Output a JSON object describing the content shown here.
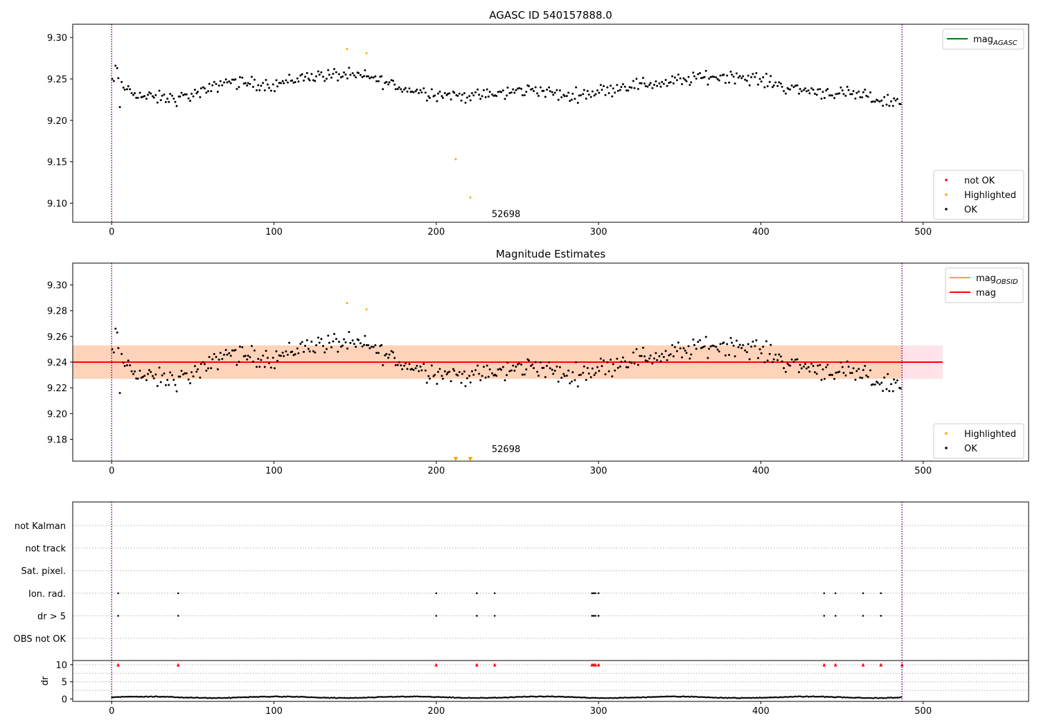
{
  "colors": {
    "ok": "#000000",
    "highlighted": "#ffa500",
    "not_ok": "#ff0000",
    "mag_line": "#ff0000",
    "mag_obsid_line": "#ffa500",
    "mag_agasc_line": "#008000",
    "vline": "#800080",
    "band_outer": "#ffc0cb",
    "band_inner": "#ffd0b0",
    "grid": "#b0b0b0"
  },
  "chart_data": [
    {
      "type": "scatter",
      "title": "AGASC ID 540157888.0",
      "xlim": [
        -24,
        565
      ],
      "ylim": [
        9.077,
        9.316
      ],
      "x_ticks": [
        0,
        100,
        200,
        300,
        400,
        500
      ],
      "y_ticks": [
        9.1,
        9.15,
        9.2,
        9.25,
        9.3
      ],
      "y_tick_labels": [
        "9.10",
        "9.15",
        "9.20",
        "9.25",
        "9.30"
      ],
      "vlines": [
        0,
        487
      ],
      "annotation": {
        "text": "52698",
        "x": 243,
        "y": 9.085
      },
      "legend_top": {
        "placement": "upper right",
        "entries": [
          {
            "label": "mag",
            "subscript": "AGASC",
            "color_key": "mag_agasc_line"
          }
        ]
      },
      "legend_bottom": {
        "placement": "lower right",
        "entries": [
          {
            "label": "not OK",
            "color_key": "not_ok"
          },
          {
            "label": "Highlighted",
            "color_key": "highlighted"
          },
          {
            "label": "OK",
            "color_key": "ok"
          }
        ]
      },
      "series": [
        {
          "name": "not OK",
          "color_key": "not_ok",
          "x": [],
          "y": []
        },
        {
          "name": "Highlighted",
          "color_key": "highlighted",
          "x": [
            145,
            157,
            212,
            221
          ],
          "y": [
            9.286,
            9.281,
            9.153,
            9.107
          ]
        },
        {
          "name": "OK",
          "color_key": "ok",
          "trend": {
            "x": [
              0,
              20,
              40,
              60,
              70,
              80,
              100,
              120,
              140,
              160,
              180,
              200,
              220,
              240,
              260,
              280,
              300,
              320,
              340,
              360,
              380,
              400,
              420,
              440,
              460,
              480,
              487
            ],
            "y": [
              9.247,
              9.228,
              9.226,
              9.236,
              9.248,
              9.245,
              9.243,
              9.253,
              9.255,
              9.252,
              9.238,
              9.232,
              9.229,
              9.232,
              9.238,
              9.229,
              9.235,
              9.243,
              9.245,
              9.251,
              9.254,
              9.249,
              9.238,
              9.234,
              9.23,
              9.222,
              9.224
            ]
          },
          "scatter_amplitude": 0.009,
          "n_points": 487
        }
      ]
    },
    {
      "type": "scatter",
      "title": "Magnitude Estimates",
      "xlim": [
        -24,
        565
      ],
      "ylim": [
        9.163,
        9.317
      ],
      "x_ticks": [
        0,
        100,
        200,
        300,
        400,
        500
      ],
      "y_ticks": [
        9.18,
        9.2,
        9.22,
        9.24,
        9.26,
        9.28,
        9.3
      ],
      "y_tick_labels": [
        "9.18",
        "9.20",
        "9.22",
        "9.24",
        "9.26",
        "9.28",
        "9.30"
      ],
      "vlines": [
        0,
        487
      ],
      "annotation": {
        "text": "52698",
        "x": 243,
        "y": 9.171
      },
      "mag_line": {
        "y": 9.24,
        "x_range": [
          -24,
          512
        ]
      },
      "band_outer": {
        "y_range": [
          9.227,
          9.253
        ],
        "x_range": [
          -24,
          512
        ]
      },
      "band_inner": {
        "y_range": [
          9.227,
          9.253
        ],
        "x_range": [
          -24,
          487
        ]
      },
      "offscale_markers": {
        "x": [
          212,
          221
        ],
        "color_key": "highlighted"
      },
      "legend_top": {
        "placement": "upper right",
        "entries": [
          {
            "label": "mag",
            "subscript": "OBSID",
            "color_key": "mag_obsid_line"
          },
          {
            "label": "mag",
            "color_key": "mag_line"
          }
        ]
      },
      "legend_bottom": {
        "placement": "lower right",
        "entries": [
          {
            "label": "Highlighted",
            "color_key": "highlighted"
          },
          {
            "label": "OK",
            "color_key": "ok"
          }
        ]
      },
      "series": [
        {
          "name": "Highlighted",
          "color_key": "highlighted",
          "x": [
            145,
            157
          ],
          "y": [
            9.286,
            9.281
          ]
        },
        {
          "name": "OK",
          "color_key": "ok",
          "same_as_panel": 0
        }
      ]
    },
    {
      "type": "scatter",
      "title": "",
      "xlim": [
        -24,
        565
      ],
      "x_ticks": [
        0,
        100,
        200,
        300,
        400,
        500
      ],
      "vlines": [
        0,
        487
      ],
      "flag_rows": [
        "not Kalman",
        "not track",
        "Sat. pixel.",
        "Ion. rad.",
        "dr > 5",
        "OBS not OK"
      ],
      "flag_points": {
        "Ion. rad.": [
          4,
          41,
          200,
          225,
          236,
          296,
          297,
          298,
          300,
          439,
          446,
          463,
          474
        ],
        "dr > 5": [
          4,
          41,
          200,
          225,
          236,
          296,
          297,
          298,
          300,
          439,
          446,
          463,
          474
        ]
      },
      "dr": {
        "ylabel": "dr",
        "ylim": [
          -0.7,
          11.2
        ],
        "y_ticks": [
          0,
          5,
          10
        ],
        "y_tick_labels": [
          "0",
          "5",
          "10"
        ],
        "capped_value": 10,
        "capped_x": [
          4,
          41,
          200,
          225,
          236,
          296,
          297,
          298,
          300,
          439,
          446,
          463,
          474,
          487
        ],
        "baseline_mean": 0.5,
        "baseline_amplitude": 0.35
      }
    }
  ]
}
